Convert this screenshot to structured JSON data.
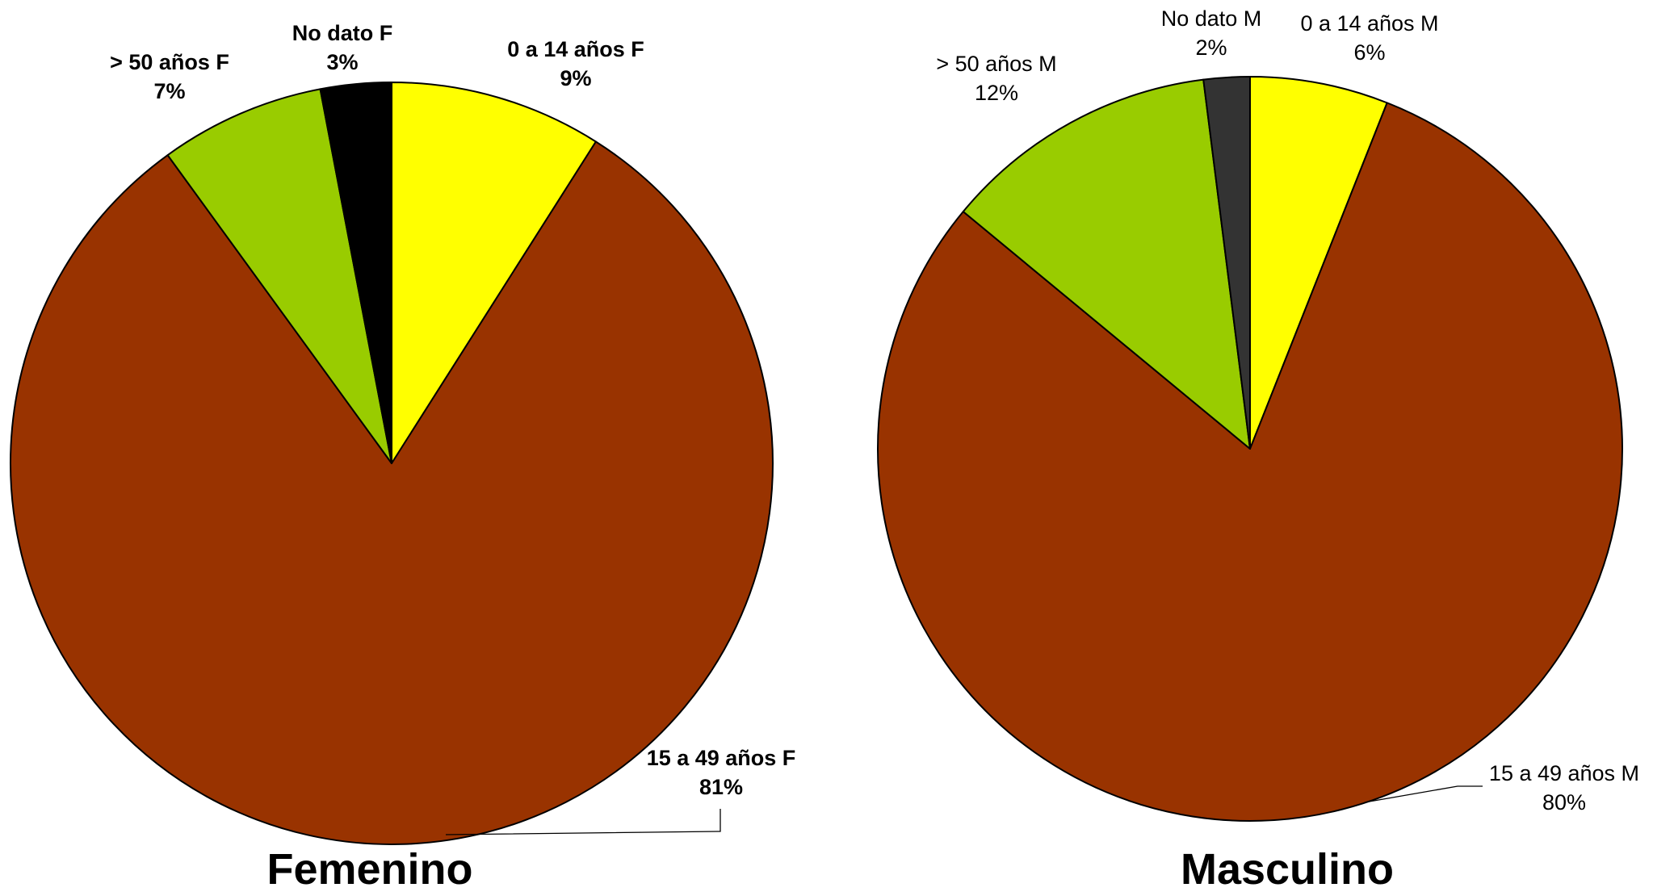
{
  "chart_data": [
    {
      "type": "pie",
      "title": "Femenino",
      "series": [
        {
          "label": "0 a 14 años F",
          "value": 9,
          "value_label": "9%",
          "color": "#FFFF00"
        },
        {
          "label": "15 a 49 años F",
          "value": 81,
          "value_label": "81%",
          "color": "#993300"
        },
        {
          "label": "> 50 años F",
          "value": 7,
          "value_label": "7%",
          "color": "#99CC00"
        },
        {
          "label": "No dato F",
          "value": 3,
          "value_label": "3%",
          "color": "#000000"
        }
      ],
      "start_angle_deg": 0,
      "direction": "clockwise",
      "label_style": "bold"
    },
    {
      "type": "pie",
      "title": "Masculino",
      "series": [
        {
          "label": "0 a 14 años M",
          "value": 6,
          "value_label": "6%",
          "color": "#FFFF00"
        },
        {
          "label": "15 a 49 años M",
          "value": 80,
          "value_label": "80%",
          "color": "#993300"
        },
        {
          "label": "> 50 años M",
          "value": 12,
          "value_label": "12%",
          "color": "#99CC00"
        },
        {
          "label": "No dato M",
          "value": 2,
          "value_label": "2%",
          "color": "#333333"
        }
      ],
      "start_angle_deg": 0,
      "direction": "clockwise",
      "label_style": "normal"
    }
  ]
}
